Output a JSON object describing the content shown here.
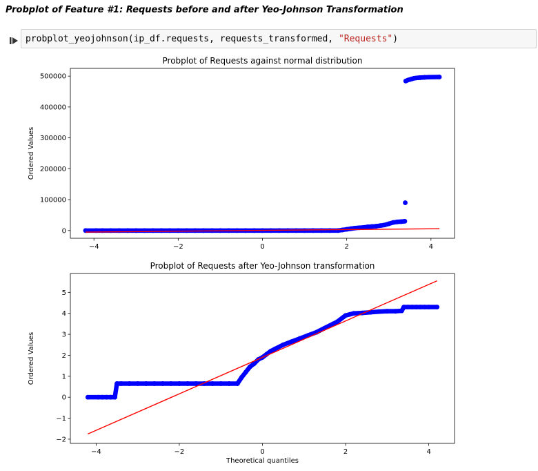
{
  "heading": "Probplot of Feature #1: Requests before and after Yeo-Johnson Transformation",
  "code": {
    "prefix": "probplot_yeojohnson(ip_df.requests, requests_transformed, ",
    "string_arg": "\"Requests\"",
    "suffix": ")"
  },
  "icons": {
    "run": "step-run-icon"
  },
  "colors": {
    "points": "#0000ff",
    "fit_line": "#ff0000",
    "code_string": "#ba2121"
  },
  "chart_data": [
    {
      "type": "scatter",
      "title": "Probplot of Requests against normal distribution",
      "xlabel": "",
      "ylabel": "Ordered Values",
      "xlim": [
        -4.56,
        4.56
      ],
      "ylim": [
        -25000,
        525000
      ],
      "xticks": [
        -4,
        -2,
        0,
        2,
        4
      ],
      "xtick_labels": [
        "−4",
        "−2",
        "0",
        "2",
        "4"
      ],
      "yticks": [
        0,
        100000,
        200000,
        300000,
        400000,
        500000
      ],
      "ytick_labels": [
        "0",
        "100000",
        "200000",
        "300000",
        "400000",
        "500000"
      ],
      "grid": false,
      "series": [
        {
          "kind": "points",
          "x": [
            -4.2,
            -3.95,
            -3.8,
            -3.6,
            -3.4,
            -3.2,
            -3.0,
            -2.8,
            -2.6,
            -2.4,
            -2.2,
            -2.0,
            -1.8,
            -1.6,
            -1.4,
            -1.2,
            -1.0,
            -0.8,
            -0.6,
            -0.4,
            -0.2,
            0.0,
            0.2,
            0.4,
            0.6,
            0.8,
            1.0,
            1.2,
            1.4,
            1.6,
            1.8,
            1.9,
            2.0,
            2.1,
            2.2,
            2.3,
            2.4,
            2.5,
            2.6,
            2.7,
            2.8,
            2.9,
            3.0,
            3.1,
            3.2,
            3.3,
            3.38,
            3.39,
            3.4,
            3.45,
            3.5,
            3.55,
            3.6,
            3.65,
            3.7,
            3.75,
            3.8,
            3.85,
            3.95,
            4.2
          ],
          "y": [
            0,
            0,
            0,
            0,
            0,
            0,
            0,
            0,
            0,
            0,
            0,
            0,
            0,
            0,
            0,
            0,
            0,
            0,
            0,
            0,
            0,
            0,
            0,
            0,
            0,
            0,
            0,
            0,
            0,
            0,
            0,
            2000,
            4000,
            6000,
            8000,
            9000,
            10000,
            12000,
            13000,
            14000,
            16000,
            18000,
            22000,
            26000,
            28000,
            29000,
            30000,
            90000,
            484000,
            487000,
            489000,
            491000,
            493000,
            494000,
            494500,
            495000,
            495500,
            496000,
            496500,
            497000
          ]
        },
        {
          "kind": "line",
          "x": [
            -4.2,
            4.2
          ],
          "y": [
            -5000,
            6000
          ]
        }
      ]
    },
    {
      "type": "scatter",
      "title": "Probplot of Requests after Yeo-Johnson transformation",
      "xlabel": "Theoretical quantiles",
      "ylabel": "Ordered Values",
      "xlim": [
        -4.62,
        4.62
      ],
      "ylim": [
        -2.2,
        5.9
      ],
      "xticks": [
        -4,
        -2,
        0,
        2,
        4
      ],
      "xtick_labels": [
        "−4",
        "−2",
        "0",
        "2",
        "4"
      ],
      "yticks": [
        -2,
        -1,
        0,
        1,
        2,
        3,
        4,
        5
      ],
      "ytick_labels": [
        "−2",
        "−1",
        "0",
        "1",
        "2",
        "3",
        "4",
        "5"
      ],
      "grid": false,
      "series": [
        {
          "kind": "points",
          "x": [
            -4.2,
            -3.95,
            -3.85,
            -3.75,
            -3.65,
            -3.55,
            -3.5,
            -3.4,
            -3.2,
            -3.0,
            -2.8,
            -2.6,
            -2.4,
            -2.2,
            -2.0,
            -1.8,
            -1.6,
            -1.4,
            -1.2,
            -1.0,
            -0.8,
            -0.6,
            -0.5,
            -0.4,
            -0.3,
            -0.2,
            -0.1,
            0.0,
            0.1,
            0.2,
            0.3,
            0.5,
            0.7,
            0.9,
            1.1,
            1.3,
            1.5,
            1.7,
            1.8,
            2.0,
            2.1,
            2.2,
            2.4,
            2.6,
            2.8,
            3.0,
            3.2,
            3.35,
            3.4,
            3.5,
            3.6,
            3.7,
            3.8,
            3.9,
            4.0,
            4.2
          ],
          "y": [
            0.0,
            0.0,
            0.0,
            0.0,
            0.0,
            0.0,
            0.65,
            0.65,
            0.65,
            0.65,
            0.65,
            0.65,
            0.65,
            0.65,
            0.65,
            0.65,
            0.65,
            0.65,
            0.65,
            0.65,
            0.65,
            0.65,
            0.95,
            1.2,
            1.45,
            1.6,
            1.8,
            1.9,
            2.05,
            2.2,
            2.3,
            2.5,
            2.65,
            2.8,
            2.95,
            3.1,
            3.3,
            3.5,
            3.6,
            3.9,
            3.95,
            4.0,
            4.02,
            4.05,
            4.08,
            4.1,
            4.1,
            4.12,
            4.3,
            4.3,
            4.3,
            4.3,
            4.3,
            4.3,
            4.3,
            4.3
          ]
        },
        {
          "kind": "line",
          "x": [
            -4.2,
            4.2
          ],
          "y": [
            -1.75,
            5.55
          ]
        }
      ]
    }
  ]
}
